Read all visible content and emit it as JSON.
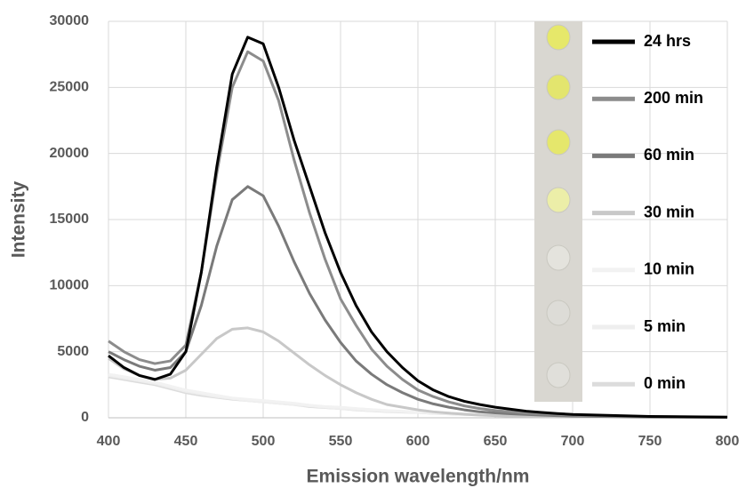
{
  "chart_data": {
    "type": "line",
    "x_label": "Emission wavelength/nm",
    "y_label": "Intensity",
    "x": [
      400,
      410,
      420,
      430,
      440,
      450,
      460,
      470,
      480,
      490,
      500,
      510,
      520,
      530,
      540,
      550,
      560,
      570,
      580,
      590,
      600,
      610,
      620,
      630,
      640,
      650,
      660,
      670,
      680,
      690,
      700,
      750,
      800
    ],
    "series": [
      {
        "name": "24 hrs",
        "color": "#000000",
        "values": [
          4700,
          3800,
          3200,
          2900,
          3300,
          5000,
          11000,
          19000,
          26000,
          28800,
          28300,
          25000,
          21000,
          17500,
          14000,
          11000,
          8500,
          6500,
          5000,
          3800,
          2800,
          2100,
          1600,
          1250,
          1000,
          800,
          650,
          500,
          400,
          320,
          250,
          100,
          50
        ]
      },
      {
        "name": "200 min",
        "color": "#8c8c8c",
        "values": [
          5800,
          5000,
          4400,
          4100,
          4300,
          5500,
          11000,
          18500,
          25000,
          27700,
          27000,
          24000,
          19500,
          15500,
          12000,
          9000,
          7000,
          5200,
          3900,
          2900,
          2100,
          1600,
          1200,
          900,
          700,
          550,
          450,
          350,
          300,
          250,
          200,
          80,
          40
        ]
      },
      {
        "name": "60 min",
        "color": "#7a7a7a",
        "values": [
          5000,
          4400,
          3900,
          3600,
          3800,
          5000,
          8500,
          13000,
          16500,
          17500,
          16800,
          14500,
          11800,
          9400,
          7400,
          5700,
          4300,
          3300,
          2500,
          1900,
          1400,
          1050,
          800,
          600,
          450,
          370,
          300,
          250,
          200,
          160,
          130,
          60,
          30
        ]
      },
      {
        "name": "30 min",
        "color": "#c8c8c8",
        "values": [
          4500,
          3700,
          3200,
          2900,
          3000,
          3600,
          4800,
          6000,
          6700,
          6800,
          6500,
          5800,
          4900,
          4000,
          3200,
          2500,
          1900,
          1400,
          1000,
          800,
          600,
          450,
          350,
          270,
          200,
          160,
          130,
          110,
          100,
          90,
          80,
          40,
          20
        ]
      },
      {
        "name": "10 min",
        "color": "#f2f2f2",
        "values": [
          3300,
          3100,
          2900,
          2700,
          2400,
          2100,
          1900,
          1700,
          1500,
          1400,
          1300,
          1200,
          1100,
          950,
          850,
          800,
          700,
          620,
          550,
          500,
          450,
          400,
          350,
          300,
          270,
          250,
          220,
          190,
          160,
          140,
          120,
          70,
          40
        ]
      },
      {
        "name": "5 min",
        "color": "#eeeeee",
        "values": [
          3200,
          3000,
          2800,
          2600,
          2300,
          2000,
          1800,
          1600,
          1450,
          1300,
          1200,
          1100,
          1000,
          900,
          800,
          700,
          620,
          550,
          500,
          450,
          400,
          350,
          300,
          270,
          240,
          200,
          180,
          160,
          140,
          120,
          100,
          60,
          30
        ]
      },
      {
        "name": "0 min",
        "color": "#dcdcdc",
        "values": [
          3100,
          2900,
          2700,
          2500,
          2200,
          1900,
          1700,
          1550,
          1400,
          1300,
          1200,
          1100,
          1000,
          850,
          770,
          700,
          600,
          530,
          470,
          430,
          400,
          340,
          290,
          250,
          220,
          200,
          170,
          150,
          130,
          115,
          100,
          50,
          30
        ]
      }
    ],
    "xlim": [
      400,
      800
    ],
    "xticks": [
      400,
      450,
      500,
      550,
      600,
      650,
      700,
      750,
      800
    ],
    "ylim": [
      0,
      30000
    ],
    "yticks": [
      0,
      5000,
      10000,
      15000,
      20000,
      25000,
      30000
    ],
    "grid": true,
    "legend": "right"
  }
}
